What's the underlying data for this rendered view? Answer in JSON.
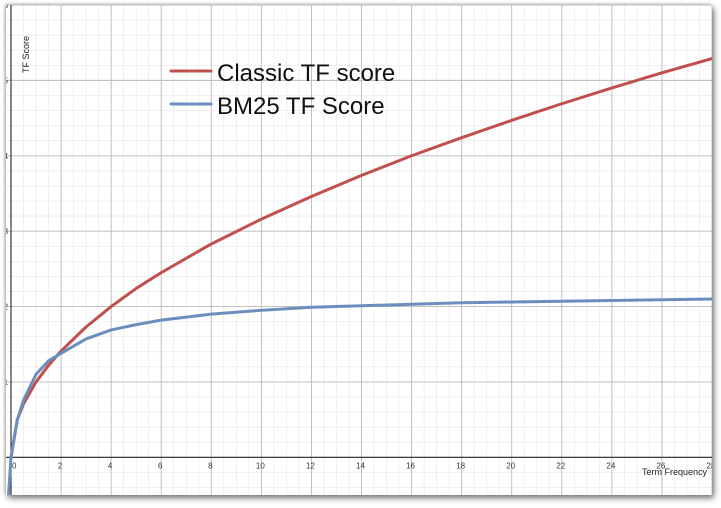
{
  "chart_data": {
    "type": "line",
    "title": "",
    "xlabel": "Term Frequency",
    "ylabel": "TF Score",
    "xlim": [
      -0.2,
      28
    ],
    "ylim": [
      -0.5,
      6
    ],
    "x_ticks": [
      0,
      2,
      4,
      6,
      8,
      10,
      12,
      14,
      16,
      18,
      20,
      22,
      24,
      26,
      28
    ],
    "y_ticks": [
      1,
      2,
      3,
      4,
      5,
      6
    ],
    "grid": true,
    "legend_position": "top-left",
    "series": [
      {
        "name": "Classic TF score",
        "color": "#c0504d",
        "x": [
          0,
          0.25,
          0.5,
          1,
          1.5,
          2,
          3,
          4,
          5,
          6,
          8,
          10,
          12,
          14,
          16,
          18,
          20,
          22,
          24,
          26,
          28
        ],
        "y": [
          0,
          0.5,
          0.71,
          1.0,
          1.22,
          1.41,
          1.73,
          2.0,
          2.24,
          2.45,
          2.83,
          3.16,
          3.46,
          3.74,
          4.0,
          4.24,
          4.47,
          4.69,
          4.9,
          5.1,
          5.29
        ]
      },
      {
        "name": "BM25 TF Score",
        "color": "#6c8ebf",
        "x": [
          -0.1,
          0,
          0.25,
          0.5,
          1,
          1.5,
          2,
          3,
          4,
          5,
          6,
          8,
          10,
          12,
          14,
          16,
          18,
          20,
          22,
          24,
          26,
          28
        ],
        "y": [
          -0.5,
          0,
          0.49,
          0.76,
          1.1,
          1.28,
          1.38,
          1.57,
          1.69,
          1.76,
          1.82,
          1.9,
          1.95,
          1.99,
          2.01,
          2.03,
          2.05,
          2.06,
          2.07,
          2.08,
          2.09,
          2.1
        ]
      }
    ]
  }
}
